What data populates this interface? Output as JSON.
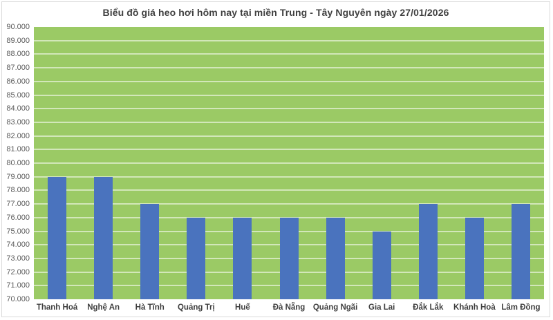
{
  "chart_data": {
    "type": "bar",
    "title": "Biểu đồ giá heo hơi hôm nay tại miền Trung - Tây Nguyên ngày 27/01/2026",
    "categories": [
      "Thanh Hoá",
      "Nghệ An",
      "Hà Tĩnh",
      "Quảng Trị",
      "Huế",
      "Đà Nẵng",
      "Quảng Ngãi",
      "Gia Lai",
      "Đắk Lắk",
      "Khánh Hoà",
      "Lâm Đồng"
    ],
    "values": [
      79000,
      79000,
      77000,
      76000,
      76000,
      76000,
      76000,
      75000,
      77000,
      76000,
      77000
    ],
    "xlabel": "",
    "ylabel": "",
    "ylim": [
      70000,
      90000
    ],
    "y_tick_step": 1000,
    "y_tick_labels": [
      "90.000",
      "89.000",
      "88.000",
      "87.000",
      "86.000",
      "85.000",
      "84.000",
      "83.000",
      "82.000",
      "81.000",
      "80.000",
      "79.000",
      "78.000",
      "77.000",
      "76.000",
      "75.000",
      "74.000",
      "73.000",
      "72.000",
      "71.000",
      "70.000"
    ],
    "grid": true,
    "legend": false,
    "colors": {
      "bar": "#4a73be",
      "plot_background": "#9bca65",
      "gridline": "rgba(255,255,255,0.55)",
      "frame_border": "#d9d9d9",
      "title_text": "#3f3f3f",
      "axis_text": "#595959"
    }
  }
}
